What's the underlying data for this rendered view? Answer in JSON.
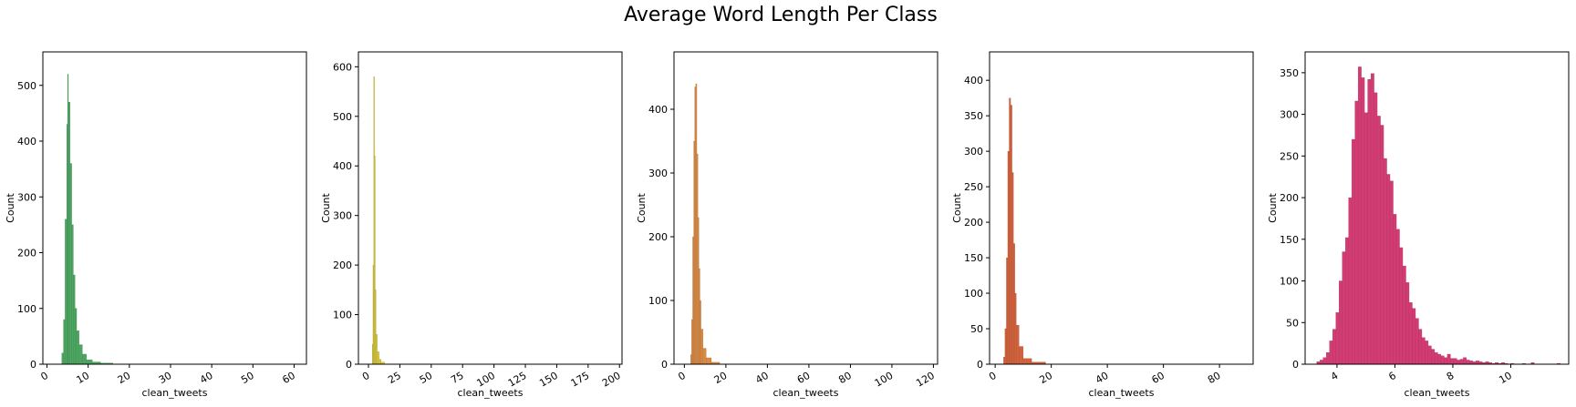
{
  "figure": {
    "title": "Average Word Length Per Class"
  },
  "chart_data": [
    {
      "type": "histogram",
      "color": "#4ca661",
      "xlabel": "clean_tweets",
      "ylabel": "Count",
      "xlim": [
        -1,
        63
      ],
      "ylim": [
        0,
        560
      ],
      "xticks": [
        0,
        10,
        20,
        30,
        40,
        50,
        60
      ],
      "yticks": [
        0,
        100,
        200,
        300,
        400,
        500
      ],
      "xticks_rotated": true,
      "grid": false,
      "bins": [
        [
          3.6,
          4.0,
          20
        ],
        [
          4.0,
          4.4,
          80
        ],
        [
          4.4,
          4.8,
          260
        ],
        [
          4.8,
          5.0,
          430
        ],
        [
          5.0,
          5.2,
          520
        ],
        [
          5.2,
          5.6,
          470
        ],
        [
          5.6,
          6.0,
          360
        ],
        [
          6.0,
          6.4,
          250
        ],
        [
          6.4,
          6.8,
          160
        ],
        [
          6.8,
          7.2,
          100
        ],
        [
          7.2,
          7.8,
          60
        ],
        [
          7.8,
          8.6,
          35
        ],
        [
          8.6,
          9.6,
          18
        ],
        [
          9.6,
          11.0,
          8
        ],
        [
          11.0,
          13.0,
          4
        ],
        [
          13.0,
          16.0,
          2
        ]
      ]
    },
    {
      "type": "histogram",
      "color": "#d4c53c",
      "xlabel": "clean_tweets",
      "ylabel": "Count",
      "xlim": [
        -8,
        202
      ],
      "ylim": [
        0,
        630
      ],
      "xticks": [
        0,
        25,
        50,
        75,
        100,
        125,
        150,
        175,
        200
      ],
      "yticks": [
        0,
        100,
        200,
        300,
        400,
        500,
        600
      ],
      "xticks_rotated": true,
      "grid": false,
      "bins": [
        [
          3.0,
          3.6,
          40
        ],
        [
          3.6,
          4.2,
          200
        ],
        [
          4.2,
          4.8,
          580
        ],
        [
          4.8,
          5.4,
          420
        ],
        [
          5.4,
          6.0,
          150
        ],
        [
          6.0,
          7.0,
          60
        ],
        [
          7.0,
          8.5,
          25
        ],
        [
          8.5,
          10.0,
          10
        ],
        [
          10.0,
          13.0,
          4
        ]
      ]
    },
    {
      "type": "histogram",
      "color": "#d88a45",
      "xlabel": "clean_tweets",
      "ylabel": "Count",
      "xlim": [
        -5,
        122
      ],
      "ylim": [
        0,
        490
      ],
      "xticks": [
        0,
        20,
        40,
        60,
        80,
        100,
        120
      ],
      "yticks": [
        0,
        100,
        200,
        300,
        400
      ],
      "xticks_rotated": true,
      "grid": false,
      "bins": [
        [
          3.0,
          3.5,
          15
        ],
        [
          3.5,
          4.0,
          70
        ],
        [
          4.0,
          4.5,
          200
        ],
        [
          4.5,
          5.0,
          350
        ],
        [
          5.0,
          5.5,
          435
        ],
        [
          5.5,
          6.0,
          440
        ],
        [
          6.0,
          6.5,
          330
        ],
        [
          6.5,
          7.0,
          230
        ],
        [
          7.0,
          7.5,
          150
        ],
        [
          7.5,
          8.0,
          100
        ],
        [
          8.0,
          9.0,
          55
        ],
        [
          9.0,
          10.5,
          25
        ],
        [
          10.5,
          13.0,
          10
        ],
        [
          13.0,
          17.0,
          3
        ]
      ]
    },
    {
      "type": "histogram",
      "color": "#d1623c",
      "xlabel": "clean_tweets",
      "ylabel": "Count",
      "xlim": [
        -2,
        92
      ],
      "ylim": [
        0,
        440
      ],
      "xticks": [
        0,
        20,
        40,
        60,
        80
      ],
      "yticks": [
        0,
        50,
        100,
        150,
        200,
        250,
        300,
        350,
        400
      ],
      "xticks_rotated": true,
      "grid": false,
      "bins": [
        [
          3.0,
          3.5,
          10
        ],
        [
          3.5,
          4.0,
          50
        ],
        [
          4.0,
          4.5,
          150
        ],
        [
          4.5,
          5.0,
          300
        ],
        [
          5.0,
          5.5,
          375
        ],
        [
          5.5,
          6.0,
          365
        ],
        [
          6.0,
          6.5,
          270
        ],
        [
          6.5,
          7.0,
          170
        ],
        [
          7.0,
          7.5,
          100
        ],
        [
          7.5,
          8.5,
          55
        ],
        [
          8.5,
          10.0,
          25
        ],
        [
          10.0,
          13.0,
          8
        ],
        [
          13.0,
          18.0,
          3
        ]
      ]
    },
    {
      "type": "histogram",
      "color": "#d23c73",
      "xlabel": "clean_tweets",
      "ylabel": "Count",
      "xlim": [
        2.9,
        12.0
      ],
      "ylim": [
        0,
        375
      ],
      "xticks": [
        4,
        6,
        8,
        10
      ],
      "yticks": [
        0,
        50,
        100,
        150,
        200,
        250,
        300,
        350
      ],
      "xticks_rotated": true,
      "grid": false,
      "bins": [
        [
          3.3,
          3.41,
          3
        ],
        [
          3.41,
          3.52,
          5
        ],
        [
          3.52,
          3.63,
          8
        ],
        [
          3.63,
          3.74,
          14
        ],
        [
          3.74,
          3.85,
          28
        ],
        [
          3.85,
          3.96,
          42
        ],
        [
          3.96,
          4.07,
          62
        ],
        [
          4.07,
          4.18,
          100
        ],
        [
          4.18,
          4.29,
          135
        ],
        [
          4.29,
          4.4,
          152
        ],
        [
          4.4,
          4.51,
          200
        ],
        [
          4.51,
          4.62,
          270
        ],
        [
          4.62,
          4.73,
          316
        ],
        [
          4.73,
          4.84,
          357
        ],
        [
          4.84,
          4.95,
          344
        ],
        [
          4.95,
          5.06,
          302
        ],
        [
          5.06,
          5.17,
          342
        ],
        [
          5.17,
          5.28,
          349
        ],
        [
          5.28,
          5.39,
          326
        ],
        [
          5.39,
          5.5,
          298
        ],
        [
          5.5,
          5.61,
          287
        ],
        [
          5.61,
          5.72,
          247
        ],
        [
          5.72,
          5.83,
          228
        ],
        [
          5.83,
          5.94,
          220
        ],
        [
          5.94,
          6.05,
          180
        ],
        [
          6.05,
          6.16,
          162
        ],
        [
          6.16,
          6.27,
          140
        ],
        [
          6.27,
          6.38,
          118
        ],
        [
          6.38,
          6.49,
          98
        ],
        [
          6.49,
          6.6,
          74
        ],
        [
          6.6,
          6.71,
          67
        ],
        [
          6.71,
          6.82,
          55
        ],
        [
          6.82,
          6.93,
          42
        ],
        [
          6.93,
          7.04,
          32
        ],
        [
          7.04,
          7.15,
          28
        ],
        [
          7.15,
          7.26,
          22
        ],
        [
          7.26,
          7.37,
          18
        ],
        [
          7.37,
          7.48,
          14
        ],
        [
          7.48,
          7.59,
          12
        ],
        [
          7.59,
          7.7,
          10
        ],
        [
          7.7,
          7.81,
          8
        ],
        [
          7.81,
          7.92,
          12
        ],
        [
          7.92,
          8.03,
          7
        ],
        [
          8.03,
          8.14,
          7
        ],
        [
          8.14,
          8.25,
          5
        ],
        [
          8.25,
          8.36,
          6
        ],
        [
          8.36,
          8.47,
          8
        ],
        [
          8.47,
          8.58,
          5
        ],
        [
          8.58,
          8.69,
          4
        ],
        [
          8.69,
          8.8,
          3
        ],
        [
          8.8,
          8.91,
          4
        ],
        [
          8.91,
          9.02,
          3
        ],
        [
          9.02,
          9.13,
          2
        ],
        [
          9.13,
          9.24,
          3
        ],
        [
          9.24,
          9.35,
          2
        ],
        [
          9.35,
          9.46,
          1
        ],
        [
          9.46,
          9.57,
          2
        ],
        [
          9.57,
          9.68,
          1
        ],
        [
          9.68,
          9.79,
          2
        ],
        [
          9.79,
          9.9,
          1
        ],
        [
          10.0,
          10.11,
          1
        ],
        [
          10.4,
          10.51,
          1
        ],
        [
          10.7,
          10.81,
          2
        ],
        [
          11.6,
          11.71,
          1
        ]
      ]
    }
  ]
}
